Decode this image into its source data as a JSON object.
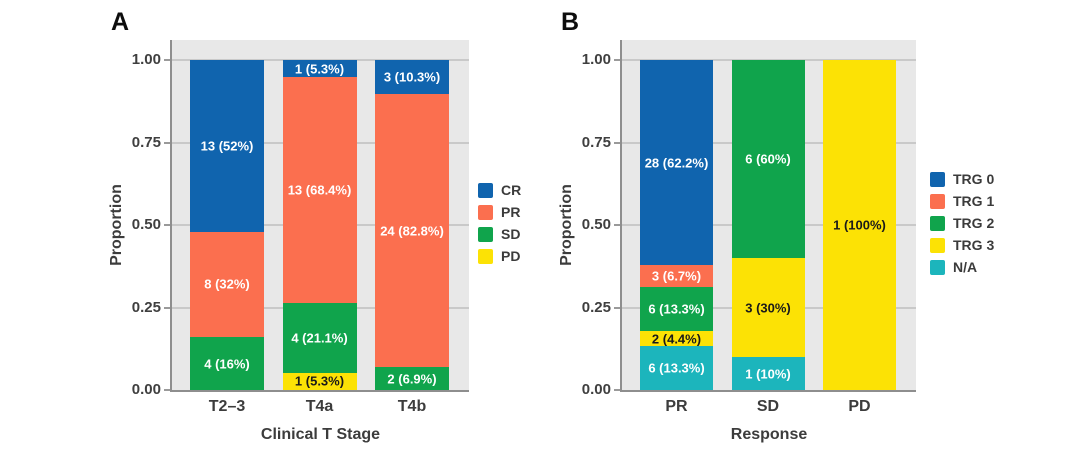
{
  "figure": {
    "background_color": "#ffffff",
    "plot_background_color": "#e8e8e8",
    "gridline_color": "#c9c9c9",
    "axis_line_color": "#8e8e8e",
    "text_color": "#3c3c3c"
  },
  "chart_data": [
    {
      "type": "bar",
      "subtype": "stacked_proportion",
      "panel_label": "A",
      "xlabel": "Clinical T Stage",
      "ylabel": "Proportion",
      "ylim": [
        0,
        1
      ],
      "grid": true,
      "legend_position": "right",
      "yticks": [
        {
          "value": 1.0,
          "label": "1.00"
        },
        {
          "value": 0.75,
          "label": "0.75"
        },
        {
          "value": 0.5,
          "label": "0.50"
        },
        {
          "value": 0.25,
          "label": "0.25"
        },
        {
          "value": 0.0,
          "label": "0.00"
        }
      ],
      "categories": [
        "T2–3",
        "T4a",
        "T4b"
      ],
      "legend": [
        {
          "name": "CR",
          "color": "#1064ae",
          "label_color": "#ffffff"
        },
        {
          "name": "PR",
          "color": "#fb6f4f",
          "label_color": "#ffffff"
        },
        {
          "name": "SD",
          "color": "#10a44c",
          "label_color": "#ffffff"
        },
        {
          "name": "PD",
          "color": "#fce205",
          "label_color": "#1a1a1a"
        }
      ],
      "bars": [
        {
          "category": "T2–3",
          "segments": [
            {
              "series": "SD",
              "count": 4,
              "fraction": 0.16,
              "label": "4 (16%)"
            },
            {
              "series": "PR",
              "count": 8,
              "fraction": 0.32,
              "label": "8 (32%)"
            },
            {
              "series": "CR",
              "count": 13,
              "fraction": 0.52,
              "label": "13 (52%)"
            }
          ]
        },
        {
          "category": "T4a",
          "segments": [
            {
              "series": "PD",
              "count": 1,
              "fraction": 0.0526,
              "label": "1 (5.3%)"
            },
            {
              "series": "SD",
              "count": 4,
              "fraction": 0.2105,
              "label": "4 (21.1%)"
            },
            {
              "series": "PR",
              "count": 13,
              "fraction": 0.6842,
              "label": "13 (68.4%)"
            },
            {
              "series": "CR",
              "count": 1,
              "fraction": 0.0527,
              "label": "1 (5.3%)"
            }
          ]
        },
        {
          "category": "T4b",
          "segments": [
            {
              "series": "SD",
              "count": 2,
              "fraction": 0.069,
              "label": "2 (6.9%)"
            },
            {
              "series": "PR",
              "count": 24,
              "fraction": 0.8276,
              "label": "24 (82.8%)"
            },
            {
              "series": "CR",
              "count": 3,
              "fraction": 0.1034,
              "label": "3 (10.3%)"
            }
          ]
        }
      ]
    },
    {
      "type": "bar",
      "subtype": "stacked_proportion",
      "panel_label": "B",
      "xlabel": "Response",
      "ylabel": "Proportion",
      "ylim": [
        0,
        1
      ],
      "grid": true,
      "legend_position": "right",
      "yticks": [
        {
          "value": 1.0,
          "label": "1.00"
        },
        {
          "value": 0.75,
          "label": "0.75"
        },
        {
          "value": 0.5,
          "label": "0.50"
        },
        {
          "value": 0.25,
          "label": "0.25"
        },
        {
          "value": 0.0,
          "label": "0.00"
        }
      ],
      "categories": [
        "PR",
        "SD",
        "PD"
      ],
      "legend": [
        {
          "name": "TRG 0",
          "color": "#1064ae",
          "label_color": "#ffffff"
        },
        {
          "name": "TRG 1",
          "color": "#fb6f4f",
          "label_color": "#ffffff"
        },
        {
          "name": "TRG 2",
          "color": "#10a44c",
          "label_color": "#ffffff"
        },
        {
          "name": "TRG 3",
          "color": "#fce205",
          "label_color": "#1a1a1a"
        },
        {
          "name": "N/A",
          "color": "#1cb5bc",
          "label_color": "#ffffff"
        }
      ],
      "bars": [
        {
          "category": "PR",
          "segments": [
            {
              "series": "N/A",
              "count": 6,
              "fraction": 0.1333,
              "label": "6 (13.3%)"
            },
            {
              "series": "TRG 3",
              "count": 2,
              "fraction": 0.0444,
              "label": "2 (4.4%)"
            },
            {
              "series": "TRG 2",
              "count": 6,
              "fraction": 0.1333,
              "label": "6 (13.3%)"
            },
            {
              "series": "TRG 1",
              "count": 3,
              "fraction": 0.0667,
              "label": "3 (6.7%)"
            },
            {
              "series": "TRG 0",
              "count": 28,
              "fraction": 0.6223,
              "label": "28 (62.2%)"
            }
          ]
        },
        {
          "category": "SD",
          "segments": [
            {
              "series": "N/A",
              "count": 1,
              "fraction": 0.1,
              "label": "1 (10%)"
            },
            {
              "series": "TRG 3",
              "count": 3,
              "fraction": 0.3,
              "label": "3 (30%)"
            },
            {
              "series": "TRG 2",
              "count": 6,
              "fraction": 0.6,
              "label": "6 (60%)"
            }
          ]
        },
        {
          "category": "PD",
          "segments": [
            {
              "series": "TRG 3",
              "count": 1,
              "fraction": 1.0,
              "label": "1 (100%)"
            }
          ]
        }
      ]
    }
  ]
}
